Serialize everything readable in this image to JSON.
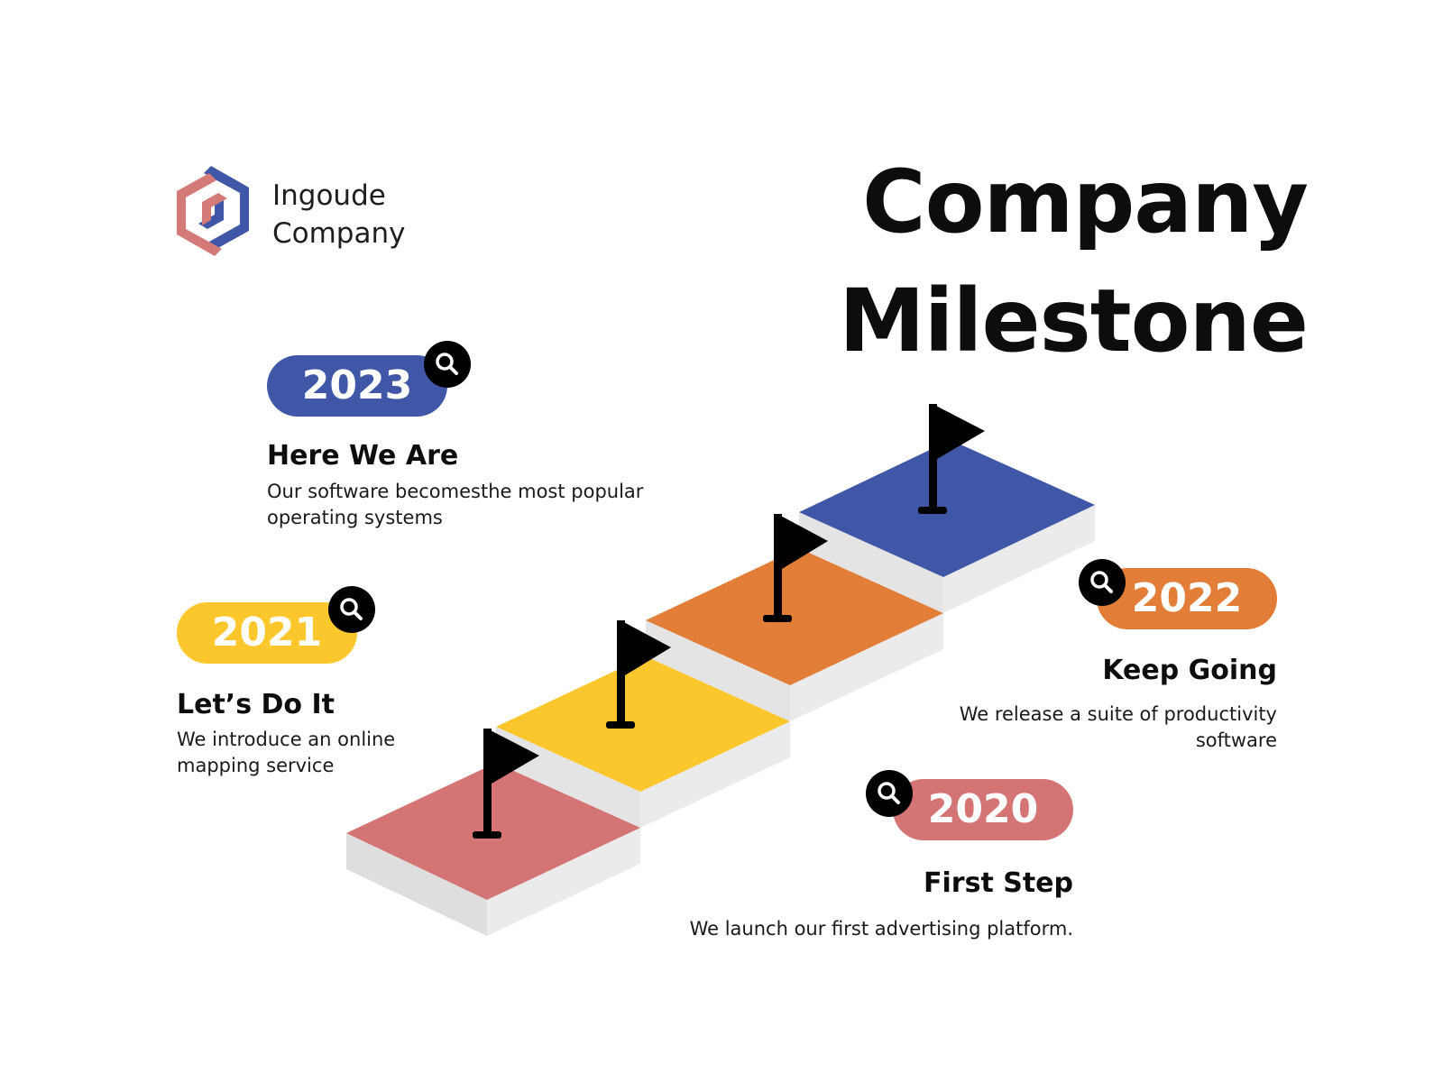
{
  "brand": {
    "name_line1": "Ingoude",
    "name_line2": "Company",
    "logo_icon": "hexagon-logo-icon",
    "logo_colors": {
      "red": "#d47a78",
      "blue": "#3f57a6"
    }
  },
  "title": {
    "line1": "Company",
    "line2": "Milestone"
  },
  "colors": {
    "blue": "#3f57a6",
    "orange": "#e27e37",
    "yellow": "#fcc72c",
    "pink": "#d47474",
    "step_side": "#e2e2e2",
    "flag": "#000000"
  },
  "milestones": [
    {
      "year": "2023",
      "heading": "Here We Are",
      "description": "Our software becomesthe most popular operating systems",
      "color": "#3f57a6",
      "icon": "search-icon"
    },
    {
      "year": "2022",
      "heading": "Keep Going",
      "description": "We release a suite of productivity software",
      "color": "#e27e37",
      "icon": "search-icon"
    },
    {
      "year": "2021",
      "heading": "Let’s Do It",
      "description": "We introduce an online mapping service",
      "color": "#fcc72c",
      "icon": "search-icon"
    },
    {
      "year": "2020",
      "heading": "First Step",
      "description": "We launch our first advertising platform.",
      "color": "#d47474",
      "icon": "search-icon"
    }
  ],
  "staircase": {
    "steps": 4,
    "step_colors_bottom_to_top": [
      "#d47474",
      "#fcc72c",
      "#e27e37",
      "#3f57a6"
    ],
    "flag_icon": "flag-icon"
  }
}
